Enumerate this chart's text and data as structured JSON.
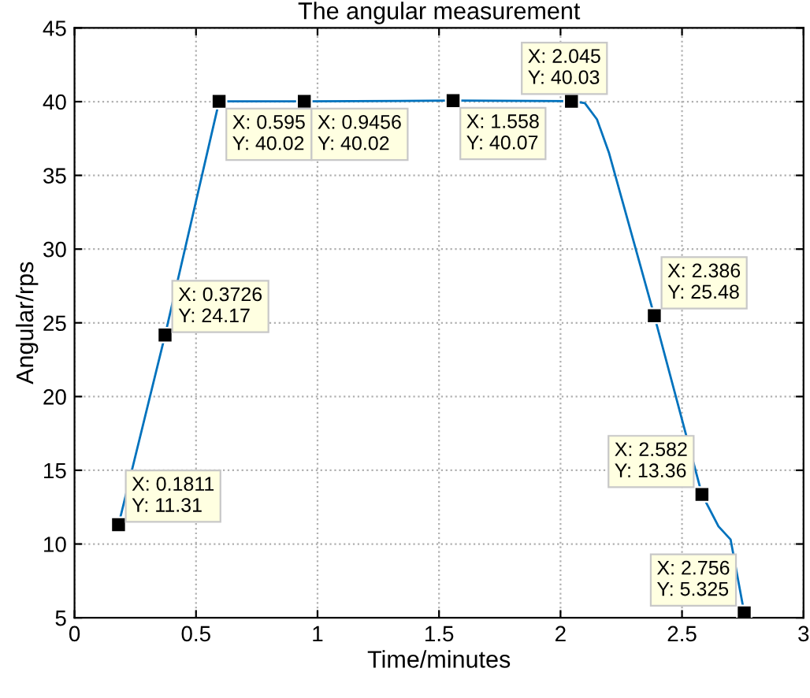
{
  "chart_data": {
    "type": "line",
    "title": "The angular measurement",
    "xlabel": "Time/minutes",
    "ylabel": "Angular/rps",
    "xlim": [
      0,
      3
    ],
    "xticks": [
      0,
      0.5,
      1,
      1.5,
      2,
      2.5,
      3
    ],
    "ylim": [
      5,
      45
    ],
    "yticks": [
      5,
      10,
      15,
      20,
      25,
      30,
      35,
      40,
      45
    ],
    "grid": true,
    "series": [
      {
        "color": "#0072bd",
        "marker": "none",
        "x": [
          0.1811,
          0.3726,
          0.595,
          0.9456,
          1.558,
          2.045,
          2.1,
          2.15,
          2.2,
          2.386,
          2.582,
          2.65,
          2.7,
          2.756
        ],
        "values": [
          11.31,
          24.17,
          40.02,
          40.02,
          40.07,
          40.03,
          39.9,
          38.8,
          36.5,
          25.48,
          13.36,
          11.2,
          10.3,
          5.325
        ]
      },
      {
        "type": "scatter",
        "color": "#000000",
        "marker": "square",
        "x": [
          0.1811,
          0.3726,
          0.595,
          0.9456,
          1.558,
          2.045,
          2.386,
          2.582,
          2.756
        ],
        "values": [
          11.31,
          24.17,
          40.02,
          40.02,
          40.07,
          40.03,
          25.48,
          13.36,
          5.325
        ]
      }
    ],
    "annotations": [
      {
        "text": "X: 0.1811\nY: 11.31",
        "x": 0.1811,
        "y": 11.31
      },
      {
        "text": "X: 0.3726\nY: 24.17",
        "x": 0.3726,
        "y": 24.17
      },
      {
        "text": "X: 0.595\nY: 40.02",
        "x": 0.595,
        "y": 40.02
      },
      {
        "text": "X: 0.9456\nY: 40.02",
        "x": 0.9456,
        "y": 40.02
      },
      {
        "text": "X: 1.558\nY: 40.07",
        "x": 1.558,
        "y": 40.07
      },
      {
        "text": "X: 2.045\nY: 40.03",
        "x": 2.045,
        "y": 40.03
      },
      {
        "text": "X: 2.386\nY: 25.48",
        "x": 2.386,
        "y": 25.48
      },
      {
        "text": "X: 2.582\nY: 13.36",
        "x": 2.582,
        "y": 13.36
      },
      {
        "text": "X: 2.756\nY: 5.325",
        "x": 2.756,
        "y": 5.325
      }
    ]
  }
}
